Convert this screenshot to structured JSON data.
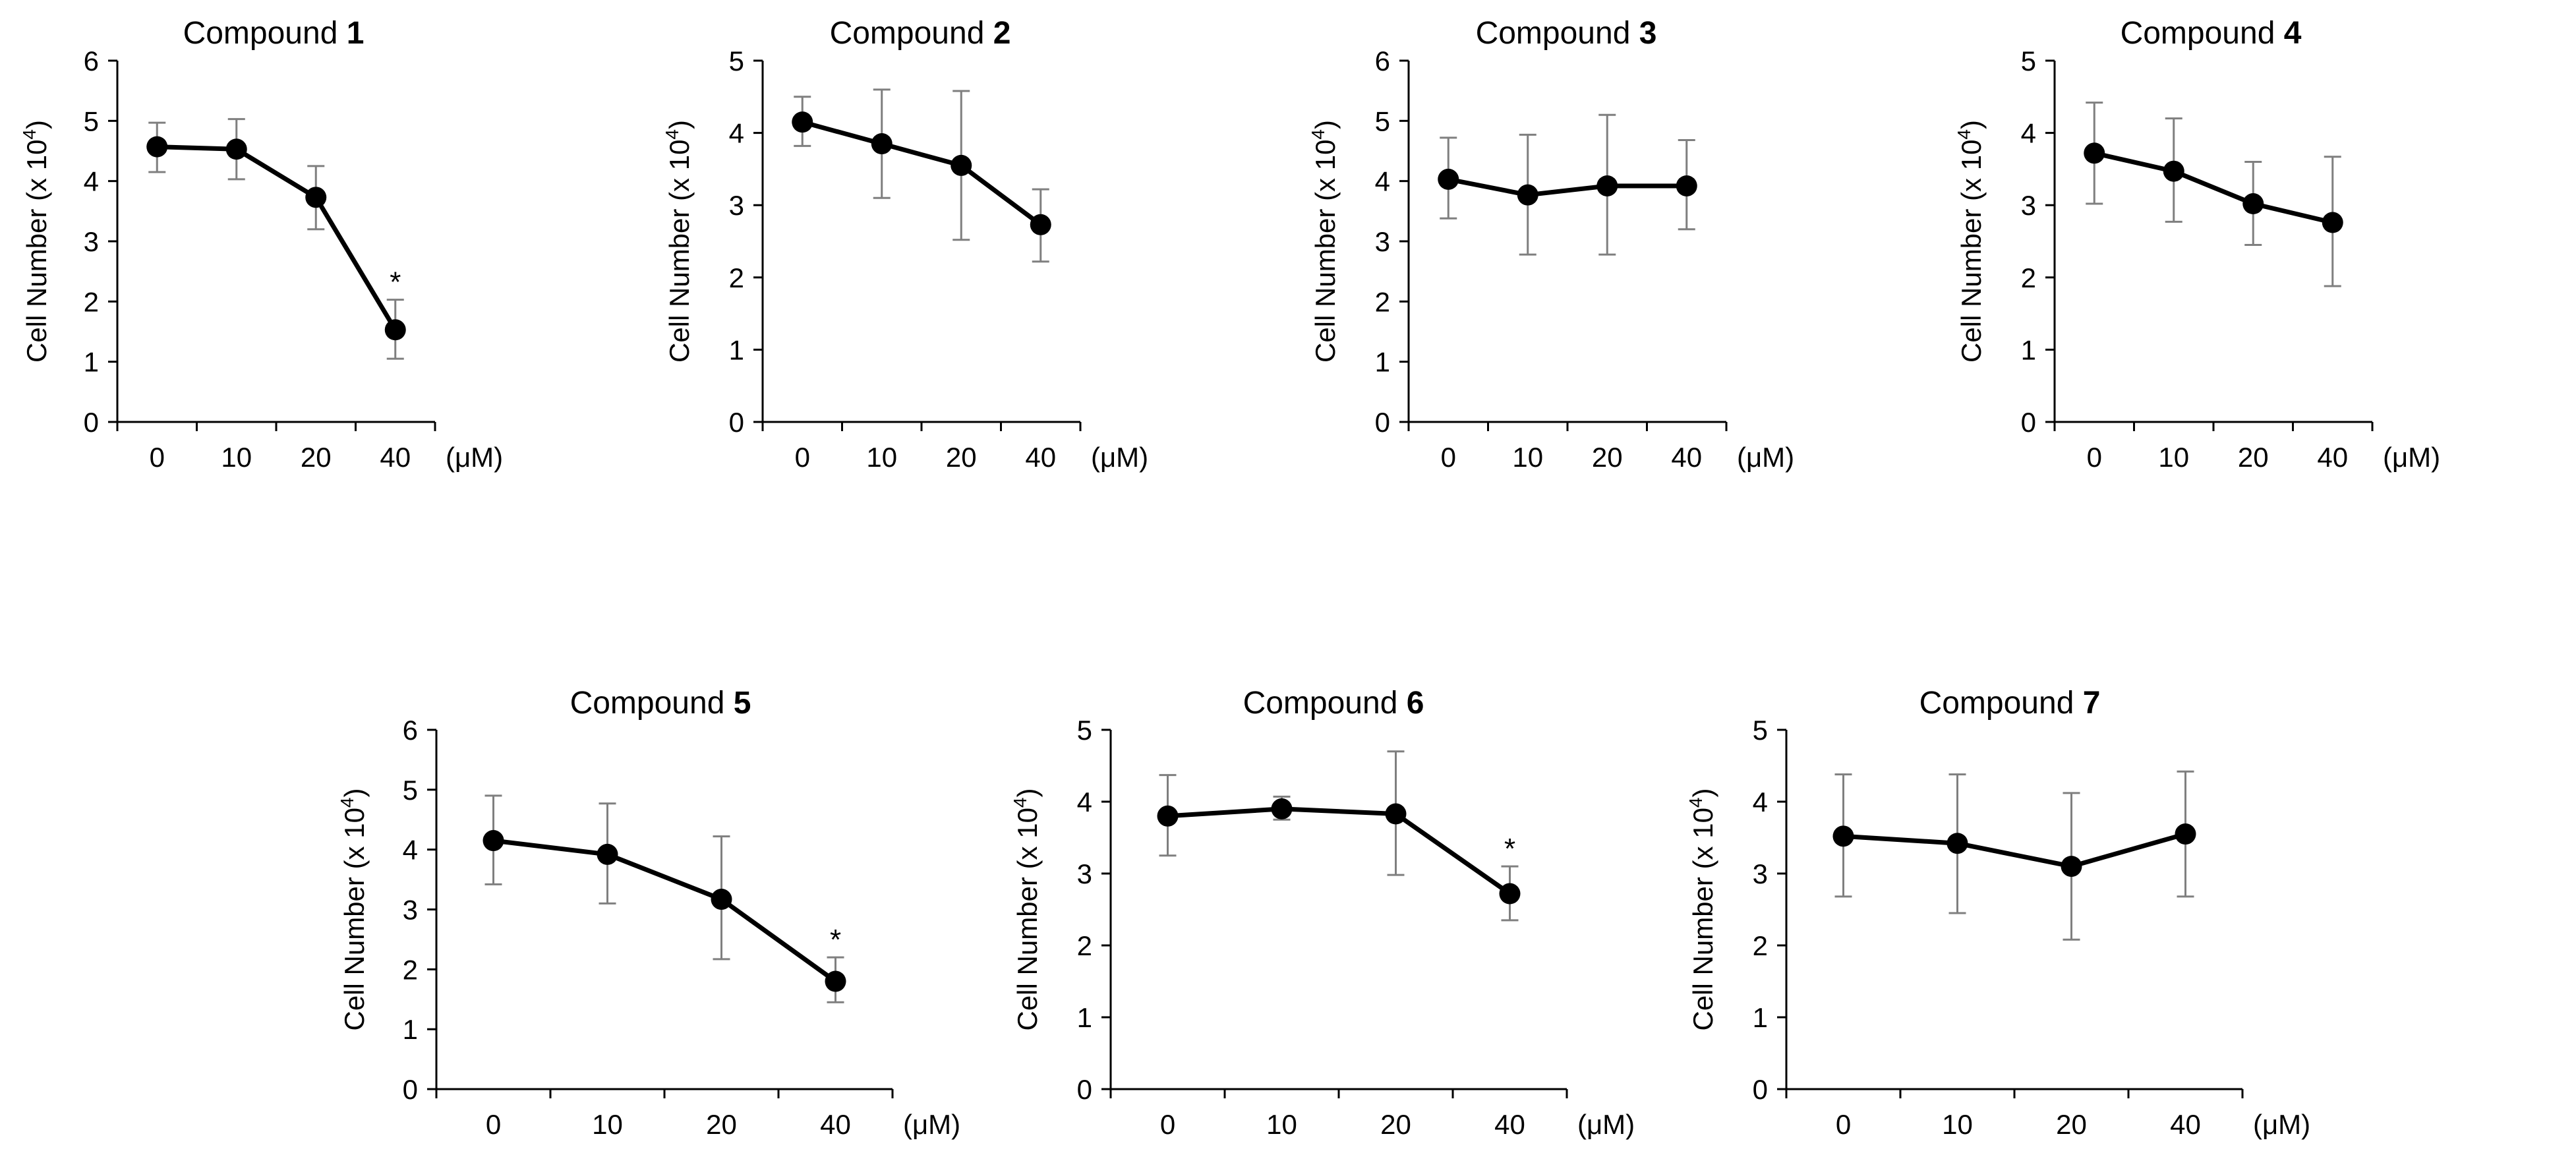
{
  "chart_data": [
    {
      "type": "line",
      "title": "Compound",
      "title_number": "1",
      "categories": [
        "0",
        "10",
        "20",
        "40"
      ],
      "unit": "(μM)",
      "ylabel": "Cell Number (x 10",
      "ylabel_sup": "4",
      "ylim": [
        0,
        6
      ],
      "yticks": [
        "0",
        "1",
        "2",
        "3",
        "4",
        "5",
        "6"
      ],
      "series": [
        {
          "name": "Compound 1",
          "values": [
            4.57,
            4.53,
            3.73,
            1.53
          ],
          "err_upper": [
            4.97,
            5.03,
            4.25,
            2.03
          ],
          "err_lower": [
            4.15,
            4.03,
            3.2,
            1.05
          ]
        }
      ],
      "significance": [
        "",
        "",
        "",
        "*"
      ]
    },
    {
      "type": "line",
      "title": "Compound",
      "title_number": "2",
      "categories": [
        "0",
        "10",
        "20",
        "40"
      ],
      "unit": "(μM)",
      "ylabel": "Cell Number (x 10",
      "ylabel_sup": "4",
      "ylim": [
        0,
        5
      ],
      "yticks": [
        "0",
        "1",
        "2",
        "3",
        "4",
        "5"
      ],
      "series": [
        {
          "name": "Compound 2",
          "values": [
            4.15,
            3.85,
            3.55,
            2.73
          ],
          "err_upper": [
            4.5,
            4.6,
            4.58,
            3.22
          ],
          "err_lower": [
            3.82,
            3.1,
            2.52,
            2.22
          ]
        }
      ],
      "significance": [
        "",
        "",
        "",
        ""
      ]
    },
    {
      "type": "line",
      "title": "Compound",
      "title_number": "3",
      "categories": [
        "0",
        "10",
        "20",
        "40"
      ],
      "unit": "(μM)",
      "ylabel": "Cell Number (x 10",
      "ylabel_sup": "4",
      "ylim": [
        0,
        6
      ],
      "yticks": [
        "0",
        "1",
        "2",
        "3",
        "4",
        "5",
        "6"
      ],
      "series": [
        {
          "name": "Compound 3",
          "values": [
            4.03,
            3.77,
            3.92,
            3.92
          ],
          "err_upper": [
            4.72,
            4.77,
            5.1,
            4.68
          ],
          "err_lower": [
            3.38,
            2.78,
            2.78,
            3.2
          ]
        }
      ],
      "significance": [
        "",
        "",
        "",
        ""
      ]
    },
    {
      "type": "line",
      "title": "Compound",
      "title_number": "4",
      "categories": [
        "0",
        "10",
        "20",
        "40"
      ],
      "unit": "(μM)",
      "ylabel": "Cell Number (x 10",
      "ylabel_sup": "4",
      "ylim": [
        0,
        5
      ],
      "yticks": [
        "0",
        "1",
        "2",
        "3",
        "4",
        "5"
      ],
      "series": [
        {
          "name": "Compound 4",
          "values": [
            3.72,
            3.47,
            3.02,
            2.76
          ],
          "err_upper": [
            4.42,
            4.2,
            3.6,
            3.67
          ],
          "err_lower": [
            3.02,
            2.77,
            2.45,
            1.88
          ]
        }
      ],
      "significance": [
        "",
        "",
        "",
        ""
      ]
    },
    {
      "type": "line",
      "title": "Compound",
      "title_number": "5",
      "categories": [
        "0",
        "10",
        "20",
        "40"
      ],
      "unit": "(μM)",
      "ylabel": "Cell Number (x 10",
      "ylabel_sup": "4",
      "ylim": [
        0,
        6
      ],
      "yticks": [
        "0",
        "1",
        "2",
        "3",
        "4",
        "5",
        "6"
      ],
      "series": [
        {
          "name": "Compound 5",
          "values": [
            4.15,
            3.92,
            3.17,
            1.8
          ],
          "err_upper": [
            4.9,
            4.77,
            4.22,
            2.2
          ],
          "err_lower": [
            3.42,
            3.1,
            2.17,
            1.45
          ]
        }
      ],
      "significance": [
        "",
        "",
        "",
        "*"
      ]
    },
    {
      "type": "line",
      "title": "Compound",
      "title_number": "6",
      "categories": [
        "0",
        "10",
        "20",
        "40"
      ],
      "unit": "(μM)",
      "ylabel": "Cell Number (x 10",
      "ylabel_sup": "4",
      "ylim": [
        0,
        5
      ],
      "yticks": [
        "0",
        "1",
        "2",
        "3",
        "4",
        "5"
      ],
      "series": [
        {
          "name": "Compound 6",
          "values": [
            3.8,
            3.9,
            3.83,
            2.72
          ],
          "err_upper": [
            4.37,
            4.07,
            4.7,
            3.1
          ],
          "err_lower": [
            3.25,
            3.75,
            2.98,
            2.35
          ]
        }
      ],
      "significance": [
        "",
        "",
        "",
        "*"
      ]
    },
    {
      "type": "line",
      "title": "Compound",
      "title_number": "7",
      "categories": [
        "0",
        "10",
        "20",
        "40"
      ],
      "unit": "(μM)",
      "ylabel": "Cell Number (x 10",
      "ylabel_sup": "4",
      "ylim": [
        0,
        5
      ],
      "yticks": [
        "0",
        "1",
        "2",
        "3",
        "4",
        "5"
      ],
      "series": [
        {
          "name": "Compound 7",
          "values": [
            3.52,
            3.42,
            3.1,
            3.55
          ],
          "err_upper": [
            4.38,
            4.38,
            4.12,
            4.42
          ],
          "err_lower": [
            2.68,
            2.45,
            2.08,
            2.68
          ]
        }
      ],
      "significance": [
        "",
        "",
        "",
        ""
      ]
    }
  ],
  "colors": {
    "line": "#000000",
    "marker": "#000000",
    "error_bar": "#7f7f7f",
    "axis": "#000000"
  }
}
